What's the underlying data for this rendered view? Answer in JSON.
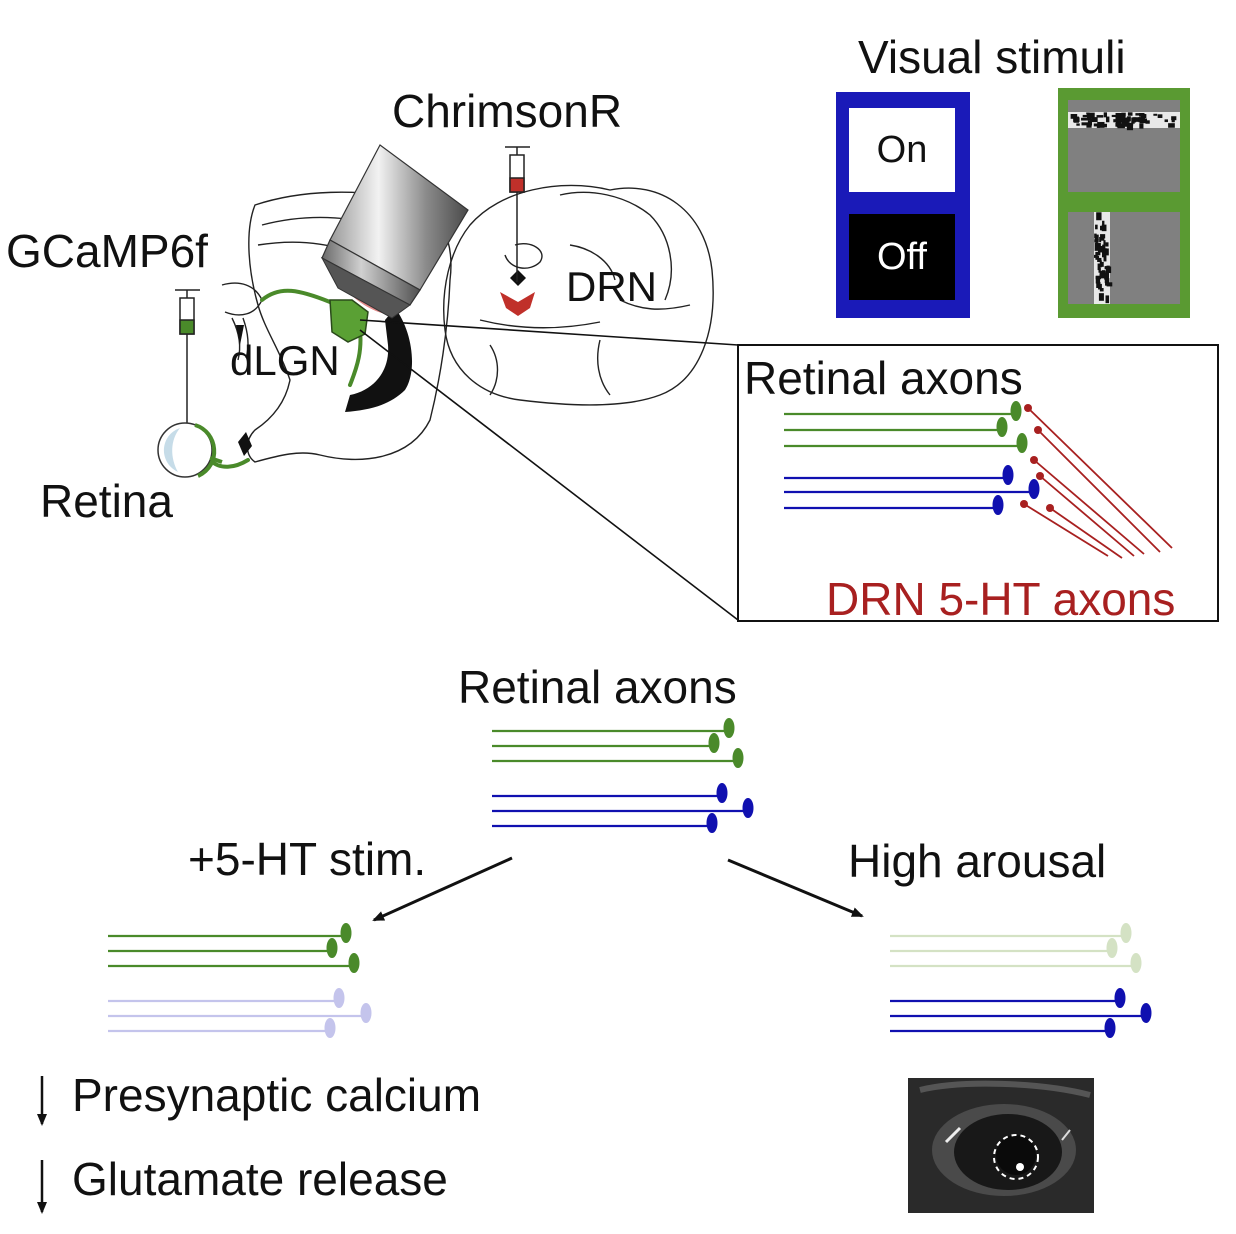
{
  "labels": {
    "visual_stimuli": "Visual stimuli",
    "chrimsonr": "ChrimsonR",
    "gcamp6f": "GCaMP6f",
    "drn": "DRN",
    "dlgn": "dLGN",
    "retina": "Retina",
    "inset_retinal_axons": "Retinal axons",
    "drn_axons": "DRN 5-HT axons",
    "retinal_axons": "Retinal axons",
    "stim_condition": "+5-HT stim.",
    "arousal_condition": "High arousal",
    "presynaptic_calcium": "Presynaptic calcium",
    "glutamate_release": "Glutamate release"
  },
  "stimuli": {
    "on_label": "On",
    "off_label": "Off"
  },
  "colors": {
    "green": "#4a8a2a",
    "blue": "#1010b0",
    "red": "#a82020",
    "pale_green": "#d4e2c4",
    "pale_blue": "#c4c4ec",
    "blue_frame": "#1a1ab8",
    "green_frame": "#5a9a32"
  }
}
